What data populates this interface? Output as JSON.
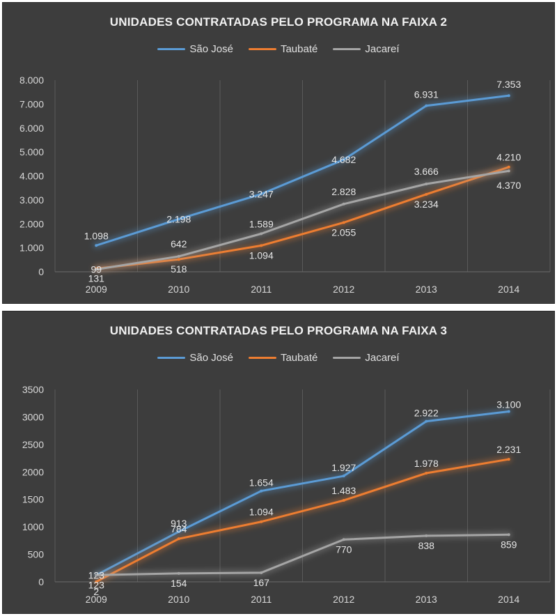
{
  "chart_data": [
    {
      "type": "line",
      "title": "UNIDADES CONTRATADAS PELO PROGRAMA NA FAIXA 2",
      "categories": [
        "2009",
        "2010",
        "2011",
        "2012",
        "2013",
        "2014"
      ],
      "y_tick_labels": [
        "0",
        "1.000",
        "2.000",
        "3.000",
        "4.000",
        "5.000",
        "6.000",
        "7.000",
        "8.000"
      ],
      "ylim": [
        0,
        8000
      ],
      "grid": "vertical",
      "legend": "top",
      "series": [
        {
          "name": "São José",
          "color": "#5b9bd5",
          "values": [
            1098,
            2198,
            3247,
            4682,
            6931,
            7353
          ],
          "labels": [
            "1.098",
            "2.198",
            "3.247",
            "4.682",
            "6.931",
            "7.353"
          ]
        },
        {
          "name": "Taubaté",
          "color": "#ed7d31",
          "values": [
            131,
            518,
            1094,
            2055,
            3234,
            4370
          ],
          "labels": [
            "131",
            "518",
            "1.094",
            "2.055",
            "3.234",
            "4.370"
          ]
        },
        {
          "name": "Jacareí",
          "color": "#a5a5a5",
          "values": [
            99,
            642,
            1589,
            2828,
            3666,
            4210
          ],
          "labels": [
            "99",
            "642",
            "1.589",
            "2.828",
            "3.666",
            "4.210"
          ]
        }
      ]
    },
    {
      "type": "line",
      "title": "UNIDADES CONTRATADAS PELO PROGRAMA NA FAIXA 3",
      "categories": [
        "2009",
        "2010",
        "2011",
        "2012",
        "2013",
        "2014"
      ],
      "y_tick_labels": [
        "0",
        "500",
        "1000",
        "1500",
        "2000",
        "2500",
        "3000",
        "3500"
      ],
      "ylim": [
        0,
        3500
      ],
      "grid": "vertical",
      "legend": "top",
      "series": [
        {
          "name": "São José",
          "color": "#5b9bd5",
          "values": [
            123,
            913,
            1654,
            1927,
            2922,
            3100
          ],
          "labels": [
            "123",
            "913",
            "1.654",
            "1.927",
            "2.922",
            "3.100"
          ]
        },
        {
          "name": "Taubaté",
          "color": "#ed7d31",
          "values": [
            2,
            784,
            1094,
            1483,
            1978,
            2231
          ],
          "labels": [
            "2",
            "784",
            "1.094",
            "1.483",
            "1.978",
            "2.231"
          ]
        },
        {
          "name": "Jacareí",
          "color": "#a5a5a5",
          "values": [
            123,
            154,
            167,
            770,
            838,
            859
          ],
          "labels": [
            "123",
            "154",
            "167",
            "770",
            "838",
            "859"
          ]
        }
      ]
    }
  ]
}
